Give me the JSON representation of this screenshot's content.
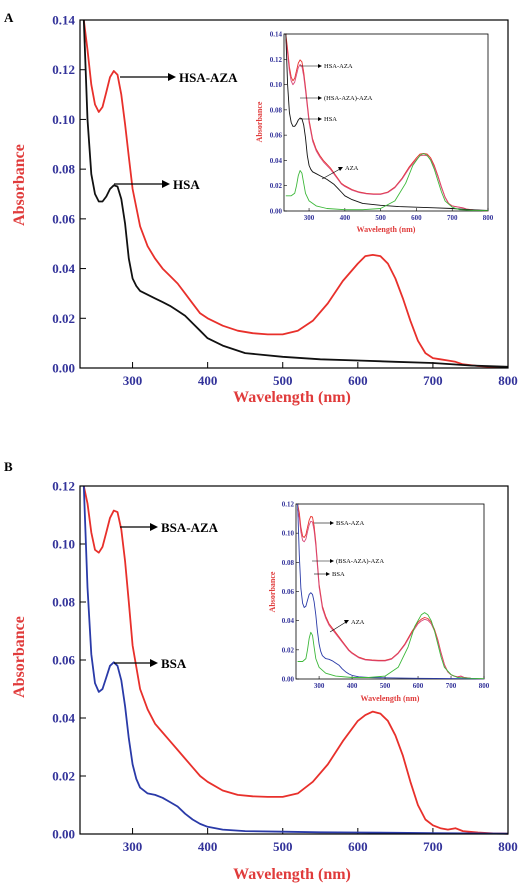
{
  "colors": {
    "axis_tick": "#33339a",
    "axis_title": "#e03b3b",
    "complex": "#e8302b",
    "hsa": "#111111",
    "bsa": "#2a3aa8",
    "aza": "#3db83a",
    "mixture": "#d84a7a"
  },
  "chart_data": [
    {
      "panel": "A",
      "type": "line",
      "xlabel": "Wavelength (nm)",
      "ylabel": "Absorbance",
      "xlim": [
        230,
        800
      ],
      "ylim": [
        0,
        0.14
      ],
      "xticks": [
        300,
        400,
        500,
        600,
        700,
        800
      ],
      "yticks": [
        0.0,
        0.02,
        0.04,
        0.06,
        0.08,
        0.1,
        0.12,
        0.14
      ],
      "annotations": [
        "HSA-AZA",
        "HSA"
      ],
      "series": [
        {
          "name": "HSA-AZA",
          "color": "#e8302b",
          "x": [
            235,
            240,
            245,
            250,
            255,
            260,
            265,
            270,
            275,
            280,
            285,
            290,
            295,
            300,
            310,
            320,
            330,
            340,
            350,
            360,
            370,
            380,
            390,
            400,
            420,
            440,
            460,
            480,
            500,
            520,
            540,
            560,
            580,
            600,
            610,
            620,
            630,
            640,
            650,
            660,
            670,
            680,
            690,
            700,
            710,
            720,
            730,
            740,
            760,
            780,
            800
          ],
          "y": [
            0.14,
            0.128,
            0.114,
            0.106,
            0.103,
            0.105,
            0.111,
            0.117,
            0.1195,
            0.118,
            0.11,
            0.098,
            0.085,
            0.072,
            0.057,
            0.049,
            0.044,
            0.04,
            0.037,
            0.034,
            0.03,
            0.026,
            0.022,
            0.02,
            0.017,
            0.015,
            0.014,
            0.0135,
            0.0135,
            0.015,
            0.019,
            0.026,
            0.035,
            0.042,
            0.045,
            0.0455,
            0.045,
            0.042,
            0.036,
            0.028,
            0.019,
            0.011,
            0.006,
            0.004,
            0.0035,
            0.003,
            0.0025,
            0.0015,
            0.0008,
            0.0004,
            0.0002
          ]
        },
        {
          "name": "HSA",
          "color": "#111111",
          "x": [
            235,
            240,
            245,
            250,
            255,
            260,
            265,
            270,
            275,
            280,
            285,
            290,
            295,
            300,
            305,
            310,
            320,
            330,
            340,
            350,
            360,
            370,
            380,
            390,
            400,
            420,
            450,
            500,
            550,
            600,
            650,
            700,
            750,
            800
          ],
          "y": [
            0.14,
            0.1,
            0.078,
            0.07,
            0.067,
            0.067,
            0.069,
            0.072,
            0.0735,
            0.073,
            0.068,
            0.058,
            0.044,
            0.036,
            0.033,
            0.031,
            0.0295,
            0.028,
            0.0265,
            0.025,
            0.023,
            0.021,
            0.018,
            0.015,
            0.012,
            0.009,
            0.006,
            0.0045,
            0.0035,
            0.003,
            0.0025,
            0.002,
            0.001,
            0.0005
          ]
        }
      ],
      "inset": {
        "xlabel": "Wavelength (nm)",
        "ylabel": "Absorbance",
        "xlim": [
          230,
          800
        ],
        "ylim": [
          0,
          0.14
        ],
        "xticks": [
          300,
          400,
          500,
          600,
          700,
          800
        ],
        "yticks": [
          0.0,
          0.02,
          0.04,
          0.06,
          0.08,
          0.1,
          0.12,
          0.14
        ],
        "annotations": [
          "HSA-AZA",
          "(HSA-AZA)-AZA",
          "HSA",
          "AZA"
        ]
      }
    },
    {
      "panel": "B",
      "type": "line",
      "xlabel": "Wavelength (nm)",
      "ylabel": "Absorbance",
      "xlim": [
        230,
        800
      ],
      "ylim": [
        0,
        0.12
      ],
      "xticks": [
        300,
        400,
        500,
        600,
        700,
        800
      ],
      "yticks": [
        0.0,
        0.02,
        0.04,
        0.06,
        0.08,
        0.1,
        0.12
      ],
      "annotations": [
        "BSA-AZA",
        "BSA"
      ],
      "series": [
        {
          "name": "BSA-AZA",
          "color": "#e8302b",
          "x": [
            235,
            240,
            245,
            250,
            255,
            260,
            265,
            270,
            275,
            280,
            285,
            290,
            295,
            300,
            310,
            320,
            330,
            340,
            350,
            360,
            370,
            380,
            390,
            400,
            420,
            440,
            460,
            480,
            500,
            520,
            540,
            560,
            580,
            600,
            610,
            620,
            630,
            640,
            650,
            660,
            670,
            680,
            690,
            700,
            710,
            720,
            730,
            740,
            760,
            780,
            800
          ],
          "y": [
            0.12,
            0.114,
            0.104,
            0.098,
            0.097,
            0.099,
            0.104,
            0.109,
            0.1115,
            0.111,
            0.105,
            0.094,
            0.08,
            0.065,
            0.05,
            0.043,
            0.038,
            0.035,
            0.032,
            0.029,
            0.026,
            0.023,
            0.02,
            0.018,
            0.015,
            0.0135,
            0.013,
            0.0128,
            0.0128,
            0.014,
            0.018,
            0.024,
            0.032,
            0.039,
            0.041,
            0.0422,
            0.0415,
            0.039,
            0.034,
            0.027,
            0.018,
            0.01,
            0.005,
            0.003,
            0.002,
            0.0015,
            0.002,
            0.001,
            0.0005,
            0.0002,
            0.0001
          ]
        },
        {
          "name": "BSA",
          "color": "#2a3aa8",
          "x": [
            235,
            240,
            245,
            250,
            255,
            260,
            265,
            270,
            275,
            280,
            285,
            290,
            295,
            300,
            305,
            310,
            320,
            330,
            340,
            350,
            360,
            370,
            380,
            390,
            400,
            420,
            450,
            500,
            550,
            600,
            650,
            700,
            750,
            800
          ],
          "y": [
            0.12,
            0.085,
            0.062,
            0.052,
            0.049,
            0.05,
            0.054,
            0.058,
            0.0592,
            0.058,
            0.053,
            0.044,
            0.033,
            0.024,
            0.019,
            0.016,
            0.014,
            0.0135,
            0.0125,
            0.011,
            0.0095,
            0.007,
            0.005,
            0.0035,
            0.0025,
            0.0015,
            0.001,
            0.0008,
            0.0006,
            0.0005,
            0.0004,
            0.0003,
            0.0002,
            0.0001
          ]
        }
      ],
      "inset": {
        "xlabel": "Wavelength (nm)",
        "ylabel": "Absorbance",
        "xlim": [
          230,
          800
        ],
        "ylim": [
          0,
          0.12
        ],
        "xticks": [
          300,
          400,
          500,
          600,
          700,
          800
        ],
        "yticks": [
          0.0,
          0.02,
          0.04,
          0.06,
          0.08,
          0.1,
          0.12
        ],
        "annotations": [
          "BSA-AZA",
          "(BSA-AZA)-AZA",
          "BSA",
          "AZA"
        ]
      }
    }
  ]
}
